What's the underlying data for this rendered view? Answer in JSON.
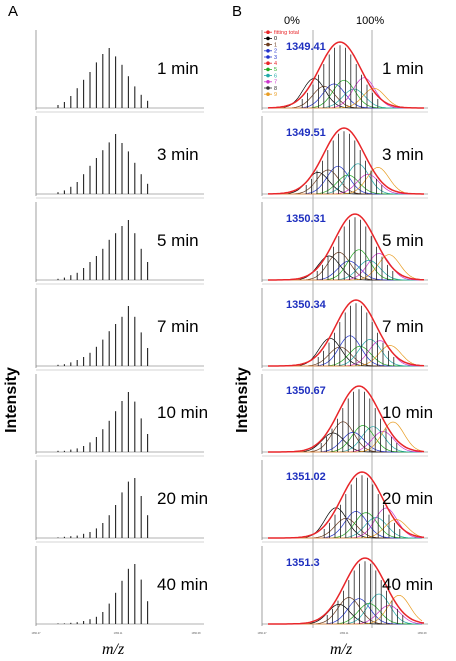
{
  "panels": {
    "A": "A",
    "B": "B"
  },
  "axes": {
    "ylabel": "Intensity",
    "xlabel": "m/z"
  },
  "percent_scale": {
    "low": "0%",
    "high": "100%"
  },
  "tick_labels": {
    "left": "1350.27",
    "mid": "1350.11",
    "right": "1350.08"
  },
  "legend": [
    {
      "label": "fitting total",
      "color": "#e8262a"
    },
    {
      "label": "0",
      "color": "#000000"
    },
    {
      "label": "1",
      "color": "#6b3b1f"
    },
    {
      "label": "2",
      "color": "#2233cc"
    },
    {
      "label": "3",
      "color": "#2233cc"
    },
    {
      "label": "4",
      "color": "#e8262a"
    },
    {
      "label": "5",
      "color": "#22aa22"
    },
    {
      "label": "6",
      "color": "#22aaaa"
    },
    {
      "label": "7",
      "color": "#cc33cc"
    },
    {
      "label": "8",
      "color": "#333333"
    },
    {
      "label": "9",
      "color": "#e89c22"
    }
  ],
  "chart_data": [
    {
      "type": "bar",
      "panel": "A",
      "xlabel": "m/z",
      "ylabel": "Intensity",
      "series": [
        {
          "name": "1 min",
          "values": [
            0.05,
            0.1,
            0.2,
            0.33,
            0.47,
            0.6,
            0.76,
            0.9,
            1.0,
            0.86,
            0.72,
            0.53,
            0.36,
            0.22,
            0.12
          ]
        },
        {
          "name": "3 min",
          "values": [
            0.03,
            0.06,
            0.12,
            0.2,
            0.33,
            0.47,
            0.6,
            0.73,
            0.86,
            1.0,
            0.85,
            0.71,
            0.52,
            0.33,
            0.17
          ]
        },
        {
          "name": "5 min",
          "values": [
            0.02,
            0.04,
            0.08,
            0.12,
            0.2,
            0.3,
            0.4,
            0.52,
            0.67,
            0.78,
            0.9,
            1.0,
            0.78,
            0.52,
            0.3
          ]
        },
        {
          "name": "7 min",
          "values": [
            0.02,
            0.03,
            0.06,
            0.1,
            0.15,
            0.22,
            0.32,
            0.44,
            0.58,
            0.7,
            0.82,
            1.0,
            0.82,
            0.56,
            0.3
          ]
        },
        {
          "name": "10 min",
          "values": [
            0.02,
            0.02,
            0.04,
            0.06,
            0.1,
            0.16,
            0.25,
            0.38,
            0.52,
            0.68,
            0.85,
            1.0,
            0.84,
            0.56,
            0.3
          ]
        },
        {
          "name": "20 min",
          "values": [
            0.01,
            0.02,
            0.03,
            0.04,
            0.07,
            0.1,
            0.16,
            0.25,
            0.38,
            0.55,
            0.76,
            0.94,
            1.0,
            0.7,
            0.38
          ]
        },
        {
          "name": "40 min",
          "values": [
            0.01,
            0.01,
            0.02,
            0.03,
            0.05,
            0.08,
            0.12,
            0.2,
            0.34,
            0.52,
            0.72,
            0.92,
            1.0,
            0.74,
            0.38
          ]
        }
      ]
    },
    {
      "type": "line",
      "panel": "B",
      "xlabel": "m/z",
      "ylabel": "Intensity",
      "series": [
        {
          "name": "1 min",
          "centroid": "1349.41"
        },
        {
          "name": "3 min",
          "centroid": "1349.51"
        },
        {
          "name": "5 min",
          "centroid": "1350.31"
        },
        {
          "name": "7 min",
          "centroid": "1350.34"
        },
        {
          "name": "10 min",
          "centroid": "1350.67"
        },
        {
          "name": "20 min",
          "centroid": "1351.02"
        },
        {
          "name": "40 min",
          "centroid": "1351.3"
        }
      ]
    }
  ]
}
